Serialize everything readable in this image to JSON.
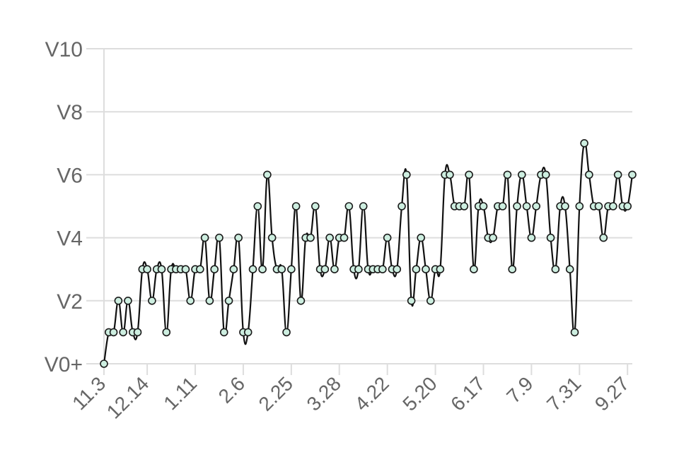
{
  "chart_data": {
    "type": "line",
    "title": "",
    "xlabel": "",
    "ylabel": "",
    "y_ticks": [
      {
        "value": 0,
        "label": "V0+"
      },
      {
        "value": 2,
        "label": "V2"
      },
      {
        "value": 4,
        "label": "V4"
      },
      {
        "value": 6,
        "label": "V6"
      },
      {
        "value": 8,
        "label": "V8"
      },
      {
        "value": 10,
        "label": "V10"
      }
    ],
    "ylim": [
      0,
      10
    ],
    "x_ticks": [
      {
        "index": 0,
        "label": "11.3"
      },
      {
        "index": 9,
        "label": "12.14"
      },
      {
        "index": 19,
        "label": "1.11"
      },
      {
        "index": 29,
        "label": "2.6"
      },
      {
        "index": 39,
        "label": "2.25"
      },
      {
        "index": 49,
        "label": "3.28"
      },
      {
        "index": 59,
        "label": "4.22"
      },
      {
        "index": 69,
        "label": "5.20"
      },
      {
        "index": 79,
        "label": "6.17"
      },
      {
        "index": 89,
        "label": "7.9"
      },
      {
        "index": 99,
        "label": "7.31"
      },
      {
        "index": 109,
        "label": "9.27"
      }
    ],
    "series": [
      {
        "values": [
          0,
          1,
          1,
          2,
          1,
          2,
          1,
          1,
          3,
          3,
          2,
          3,
          3,
          1,
          3,
          3,
          3,
          3,
          2,
          3,
          3,
          4,
          2,
          3,
          4,
          1,
          2,
          3,
          4,
          1,
          1,
          3,
          5,
          3,
          6,
          4,
          3,
          3,
          1,
          3,
          5,
          2,
          4,
          4,
          5,
          3,
          3,
          4,
          3,
          4,
          4,
          5,
          3,
          3,
          5,
          3,
          3,
          3,
          3,
          4,
          3,
          3,
          5,
          6,
          2,
          3,
          4,
          3,
          2,
          3,
          3,
          6,
          6,
          5,
          5,
          5,
          6,
          3,
          5,
          5,
          4,
          4,
          5,
          5,
          6,
          3,
          5,
          6,
          5,
          4,
          5,
          6,
          6,
          4,
          3,
          5,
          5,
          3,
          1,
          5,
          7,
          6,
          5,
          5,
          4,
          5,
          5,
          6,
          5,
          5,
          6
        ],
        "color": "#111111",
        "marker_fill": "#cdeee0"
      }
    ],
    "grid": true,
    "legend": "none"
  }
}
